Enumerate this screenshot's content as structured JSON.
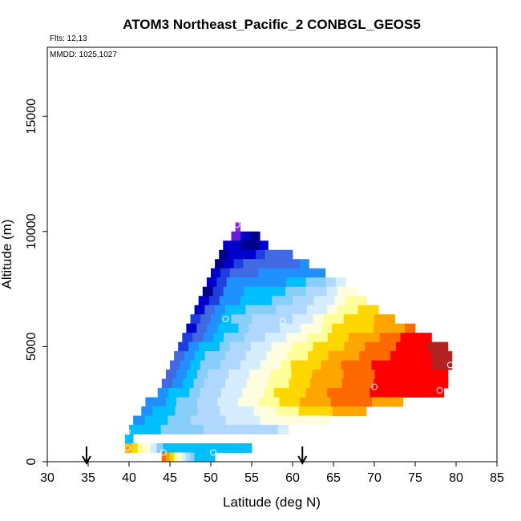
{
  "chart_data": {
    "type": "heatmap",
    "title": "ATOM3 Northeast_Pacific_2 CONBGL_GEOS5",
    "annotations": {
      "flights": "Flts: 12,13",
      "dates": "MMDD: 1025,1027"
    },
    "xlabel": "Latitude (deg N)",
    "ylabel": "Altitude (m)",
    "xlim": [
      30,
      85
    ],
    "ylim": [
      0,
      18000
    ],
    "xticks": [
      30,
      35,
      40,
      45,
      50,
      55,
      60,
      65,
      70,
      75,
      80,
      85
    ],
    "yticks": [
      0,
      5000,
      10000,
      15000
    ],
    "legend": "none",
    "grid": false,
    "colors": {
      "c0": "#00008b",
      "c1": "#0000cd",
      "c2": "#1e3fe0",
      "c3": "#4169e1",
      "c4": "#1e90ff",
      "c5": "#00bfff",
      "c6": "#87cefa",
      "c7": "#b0d8ff",
      "c8": "#d6ecff",
      "c9": "#fffde0",
      "c10": "#ffff99",
      "c11": "#ffd700",
      "c12": "#ffa500",
      "c13": "#ff6a00",
      "c14": "#ff0000",
      "c15": "#b22222",
      "v": "#8a2be2",
      "v2": "#6a1bd8"
    },
    "bands": [
      {
        "alt": [
          10000,
          10400
        ],
        "lat": [
          53,
          53.6
        ],
        "cells": [
          "v"
        ]
      },
      {
        "alt": [
          9600,
          10000
        ],
        "lat": [
          52.5,
          56
        ],
        "cells": [
          "v2",
          "c1",
          "c0"
        ]
      },
      {
        "alt": [
          9200,
          9600
        ],
        "lat": [
          51.5,
          57
        ],
        "cells": [
          "c1",
          "c1",
          "c0",
          "c0",
          "c1"
        ]
      },
      {
        "alt": [
          8800,
          9200
        ],
        "lat": [
          51,
          60
        ],
        "cells": [
          "c0",
          "c1",
          "c1",
          "c1",
          "c2",
          "c3",
          "c3",
          "c3"
        ]
      },
      {
        "alt": [
          8400,
          8800
        ],
        "lat": [
          50.5,
          62
        ],
        "cells": [
          "c0",
          "c1",
          "c2",
          "c3",
          "c3",
          "c3",
          "c3",
          "c3",
          "c3",
          "c4"
        ]
      },
      {
        "alt": [
          8000,
          8400
        ],
        "lat": [
          50,
          64
        ],
        "cells": [
          "c1",
          "c2",
          "c3",
          "c3",
          "c3",
          "c4",
          "c4",
          "c4",
          "c4",
          "c4",
          "c4",
          "c4"
        ]
      },
      {
        "alt": [
          7600,
          8000
        ],
        "lat": [
          49.5,
          66.5
        ],
        "cells": [
          "c1",
          "c2",
          "c4",
          "c4",
          "c4",
          "c4",
          "c4",
          "c4",
          "c5",
          "c5",
          "c6",
          "c6",
          "c7",
          "c8"
        ]
      },
      {
        "alt": [
          7200,
          7600
        ],
        "lat": [
          49,
          68
        ],
        "cells": [
          "c0",
          "c2",
          "c4",
          "c4",
          "c5",
          "c5",
          "c5",
          "c5",
          "c6",
          "c6",
          "c7",
          "c7",
          "c8",
          "c9",
          "c9"
        ]
      },
      {
        "alt": [
          6800,
          7200
        ],
        "lat": [
          48.5,
          69
        ],
        "cells": [
          "c1",
          "c2",
          "c4",
          "c4",
          "c5",
          "c5",
          "c5",
          "c6",
          "c6",
          "c7",
          "c7",
          "c8",
          "c8",
          "c9",
          "c10",
          "c10"
        ]
      },
      {
        "alt": [
          6400,
          6800
        ],
        "lat": [
          48,
          70.5
        ],
        "cells": [
          "c1",
          "c3",
          "c4",
          "c5",
          "c5",
          "c6",
          "c6",
          "c6",
          "c7",
          "c7",
          "c7",
          "c8",
          "c8",
          "c9",
          "c10",
          "c10",
          "c11",
          "c11"
        ]
      },
      {
        "alt": [
          6000,
          6400
        ],
        "lat": [
          47.5,
          72.5
        ],
        "cells": [
          "c2",
          "c3",
          "c4",
          "c5",
          "c6",
          "c6",
          "c7",
          "c7",
          "c7",
          "c7",
          "c8",
          "c8",
          "c9",
          "c10",
          "c10",
          "c11",
          "c11",
          "c11",
          "c12",
          "c12"
        ]
      },
      {
        "alt": [
          5600,
          6000
        ],
        "lat": [
          47,
          75
        ],
        "cells": [
          "c1",
          "c3",
          "c4",
          "c5",
          "c5",
          "c6",
          "c7",
          "c7",
          "c7",
          "c8",
          "c8",
          "c9",
          "c9",
          "c10",
          "c11",
          "c11",
          "c11",
          "c11",
          "c12",
          "c12",
          "c12",
          "c13"
        ]
      },
      {
        "alt": [
          5200,
          5600
        ],
        "lat": [
          46.5,
          77
        ],
        "cells": [
          "c2",
          "c3",
          "c4",
          "c5",
          "c6",
          "c6",
          "c7",
          "c7",
          "c8",
          "c8",
          "c9",
          "c9",
          "c10",
          "c10",
          "c11",
          "c11",
          "c12",
          "c12",
          "c12",
          "c13",
          "c13",
          "c14",
          "c14",
          "c14"
        ]
      },
      {
        "alt": [
          4800,
          5200
        ],
        "lat": [
          46,
          79
        ],
        "cells": [
          "c2",
          "c4",
          "c5",
          "c5",
          "c6",
          "c7",
          "c7",
          "c8",
          "c8",
          "c9",
          "c9",
          "c10",
          "c10",
          "c11",
          "c11",
          "c11",
          "c12",
          "c12",
          "c13",
          "c13",
          "c13",
          "c14",
          "c14",
          "c14",
          "c15",
          "c15"
        ]
      },
      {
        "alt": [
          4400,
          4800
        ],
        "lat": [
          45.5,
          79.5
        ],
        "cells": [
          "c3",
          "c4",
          "c5",
          "c6",
          "c6",
          "c7",
          "c7",
          "c8",
          "c8",
          "c9",
          "c9",
          "c10",
          "c10",
          "c11",
          "c11",
          "c12",
          "c12",
          "c12",
          "c13",
          "c13",
          "c13",
          "c14",
          "c14",
          "c14",
          "c14",
          "c15",
          "c15"
        ]
      },
      {
        "alt": [
          4000,
          4400
        ],
        "lat": [
          45,
          79.5
        ],
        "cells": [
          "c3",
          "c4",
          "c5",
          "c6",
          "c6",
          "c7",
          "c7",
          "c8",
          "c8",
          "c9",
          "c9",
          "c10",
          "c11",
          "c11",
          "c11",
          "c12",
          "c12",
          "c13",
          "c13",
          "c13",
          "c14",
          "c14",
          "c14",
          "c14",
          "c14",
          "c14",
          "c15",
          "c15"
        ]
      },
      {
        "alt": [
          3600,
          4000
        ],
        "lat": [
          44.5,
          79
        ],
        "cells": [
          "c3",
          "c4",
          "c5",
          "c6",
          "c7",
          "c7",
          "c8",
          "c8",
          "c9",
          "c9",
          "c10",
          "c10",
          "c11",
          "c11",
          "c12",
          "c12",
          "c12",
          "c13",
          "c13",
          "c13",
          "c14",
          "c14",
          "c14",
          "c14",
          "c14",
          "c14",
          "c14"
        ]
      },
      {
        "alt": [
          3200,
          3600
        ],
        "lat": [
          44,
          79
        ],
        "cells": [
          "c3",
          "c4",
          "c5",
          "c6",
          "c7",
          "c7",
          "c8",
          "c8",
          "c9",
          "c9",
          "c10",
          "c10",
          "c11",
          "c11",
          "c12",
          "c12",
          "c12",
          "c13",
          "c13",
          "c13",
          "c14",
          "c14",
          "c14",
          "c14",
          "c14",
          "c14",
          "c14"
        ]
      },
      {
        "alt": [
          2800,
          3200
        ],
        "lat": [
          43.5,
          78.5
        ],
        "cells": [
          "c4",
          "c5",
          "c5",
          "c6",
          "c7",
          "c7",
          "c8",
          "c8",
          "c9",
          "c9",
          "c10",
          "c11",
          "c11",
          "c11",
          "c12",
          "c12",
          "c13",
          "c13",
          "c13",
          "c13",
          "c14",
          "c14",
          "c14",
          "c14",
          "c14",
          "c14",
          "c14"
        ]
      },
      {
        "alt": [
          2400,
          2800
        ],
        "lat": [
          42,
          73.5
        ],
        "cells": [
          "c4",
          "c4",
          "c5",
          "c6",
          "c6",
          "c7",
          "c7",
          "c8",
          "c8",
          "c9",
          "c9",
          "c10",
          "c10",
          "c11",
          "c11",
          "c12",
          "c12",
          "c12",
          "c13",
          "c13",
          "c13",
          "c13",
          "c12",
          "c12",
          "c12"
        ]
      },
      {
        "alt": [
          2000,
          2400
        ],
        "lat": [
          41.5,
          69
        ],
        "cells": [
          "c4",
          "c5",
          "c5",
          "c6",
          "c6",
          "c7",
          "c7",
          "c8",
          "c8",
          "c8",
          "c9",
          "c9",
          "c10",
          "c10",
          "c11",
          "c11",
          "c11",
          "c12",
          "c12",
          "c12"
        ]
      },
      {
        "alt": [
          1600,
          2000
        ],
        "lat": [
          40.5,
          64.5
        ],
        "cells": [
          "c4",
          "c5",
          "c5",
          "c6",
          "c6",
          "c7",
          "c7",
          "c7",
          "c8",
          "c8",
          "c8",
          "c9",
          "c9",
          "c9",
          "c9",
          "c9",
          "c9"
        ]
      },
      {
        "alt": [
          1200,
          1600
        ],
        "lat": [
          40,
          59.5
        ],
        "cells": [
          "c5",
          "c5",
          "c5",
          "c6",
          "c6",
          "c6",
          "c6",
          "c7",
          "c7",
          "c7",
          "c7",
          "c7",
          "c7",
          "c7",
          "c8"
        ]
      },
      {
        "alt": [
          800,
          1200
        ],
        "lat": [
          39.5,
          40.5
        ],
        "cells": [
          "c5"
        ]
      },
      {
        "alt": [
          400,
          800
        ],
        "lat": [
          39.5,
          55
        ],
        "cells": [
          "c12",
          "c11",
          "c10",
          "c9",
          "c8",
          "c6",
          "c5",
          "c5",
          "c5",
          "c5",
          "c5",
          "c5",
          "c5",
          "c5",
          "c5",
          "c5",
          "c5",
          "c5",
          "c5",
          "c5"
        ]
      },
      {
        "alt": [
          0,
          400
        ],
        "lat": [
          44,
          50.5
        ],
        "cells": [
          "c13",
          "c12",
          "c11",
          "c10",
          "c9",
          "c8",
          "c7",
          "c6",
          "c5",
          "c5",
          "c5",
          "c5",
          "c5"
        ]
      }
    ],
    "circles": [
      {
        "lat": 53.2,
        "alt": 10300
      },
      {
        "lat": 51.8,
        "alt": 6200
      },
      {
        "lat": 58.8,
        "alt": 6100
      },
      {
        "lat": 79.3,
        "alt": 4200
      },
      {
        "lat": 70.0,
        "alt": 3250
      },
      {
        "lat": 78.0,
        "alt": 3100
      },
      {
        "lat": 39.8,
        "alt": 1300
      },
      {
        "lat": 39.8,
        "alt": 600
      },
      {
        "lat": 44.2,
        "alt": 400
      },
      {
        "lat": 50.3,
        "alt": 400
      }
    ],
    "arrows": [
      {
        "lat": 34.8
      },
      {
        "lat": 61.2
      }
    ]
  }
}
